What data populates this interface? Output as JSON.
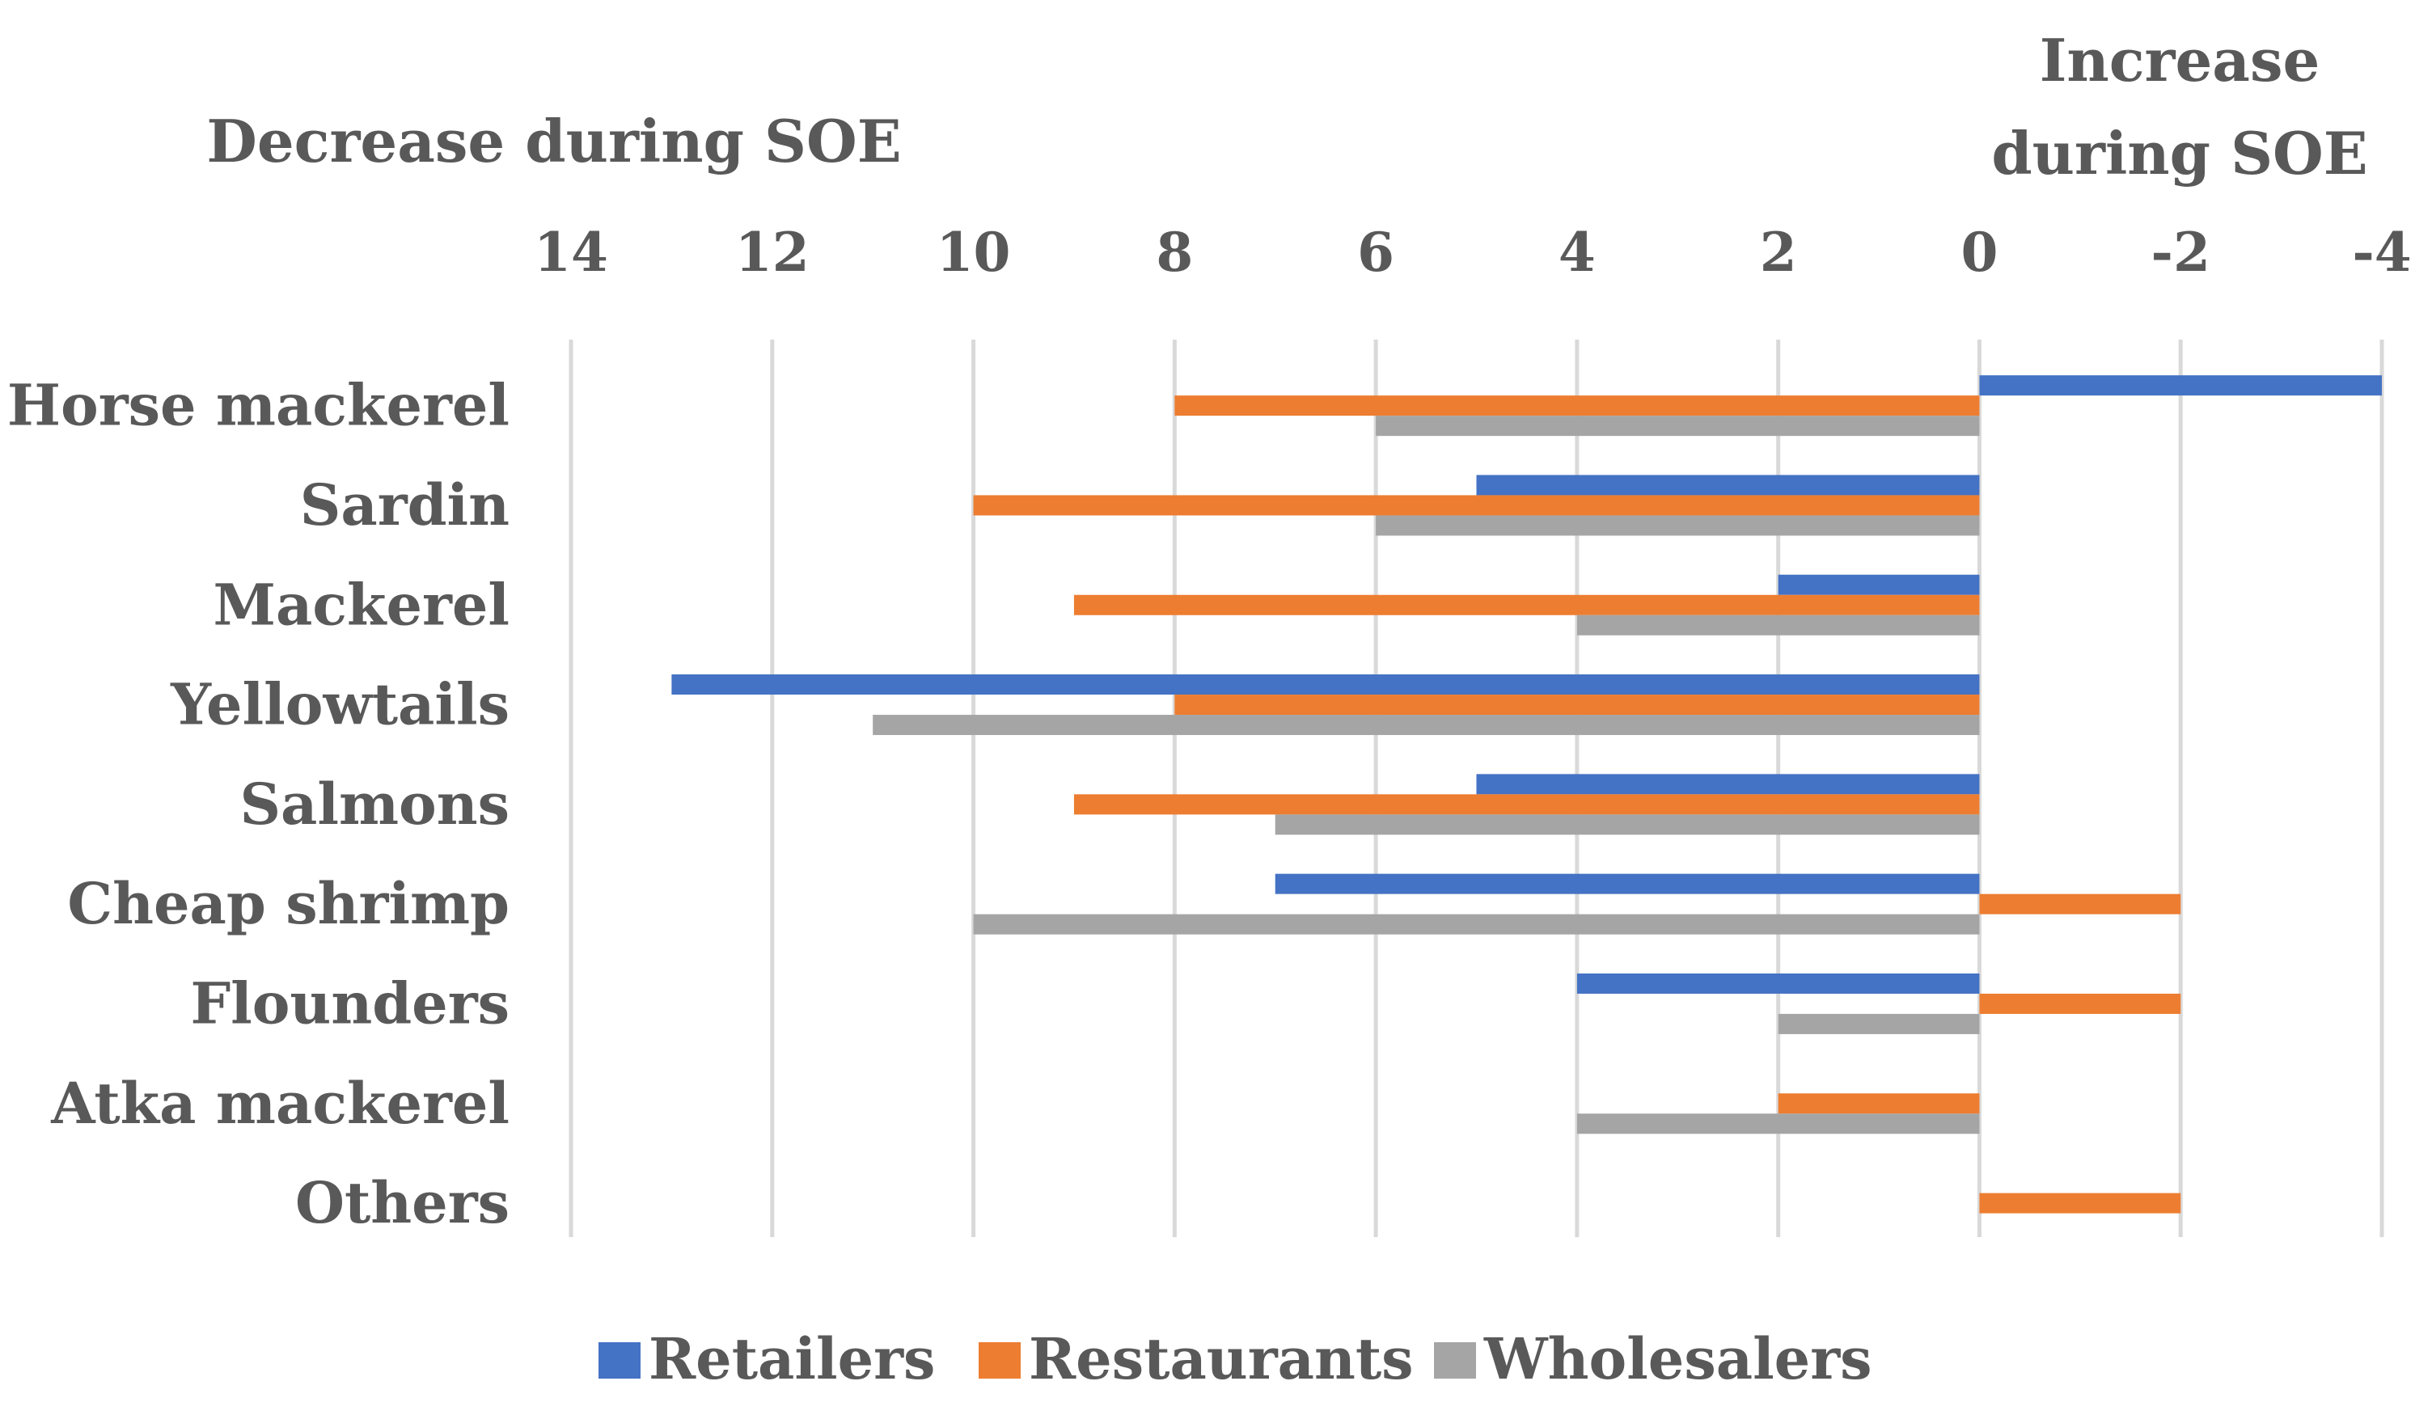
{
  "chart_data": {
    "type": "bar",
    "orientation": "horizontal",
    "title_left": "Decrease during SOE",
    "title_right_lines": [
      "Increase",
      "during SOE"
    ],
    "categories": [
      "Horse mackerel",
      "Sardin",
      "Mackerel",
      "Yellowtails",
      "Salmons",
      "Cheap shrimp",
      "Flounders",
      "Atka mackerel",
      "Others"
    ],
    "series": [
      {
        "name": "Retailers",
        "color": "#4472C4",
        "values": [
          -4,
          5,
          2,
          13,
          5,
          7,
          4,
          0,
          0
        ]
      },
      {
        "name": "Restaurants",
        "color": "#ED7D31",
        "values": [
          8,
          10,
          9,
          8,
          9,
          -2,
          -2,
          2,
          -2
        ]
      },
      {
        "name": "Wholesalers",
        "color": "#A5A5A5",
        "values": [
          6,
          6,
          4,
          11,
          7,
          10,
          2,
          4,
          0
        ]
      }
    ],
    "x_ticks": [
      "14",
      "12",
      "10",
      "8",
      "6",
      "4",
      "2",
      "0",
      "-2",
      "-4"
    ],
    "xlim": [
      14,
      -4
    ],
    "axis_reversed": true,
    "grid": true,
    "legend_position": "bottom"
  }
}
